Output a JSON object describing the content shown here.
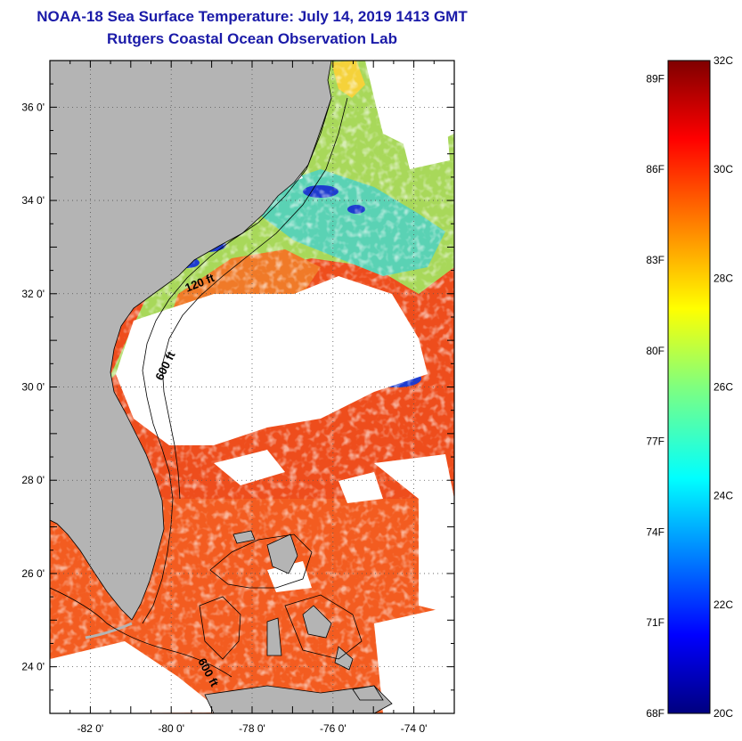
{
  "header": {
    "title": "NOAA-18 Sea Surface Temperature:  July 14, 2019 1413 GMT",
    "subtitle": "Rutgers Coastal Ocean Observation Lab"
  },
  "map": {
    "lon_range": [
      -83,
      -73
    ],
    "lat_range": [
      23,
      37
    ],
    "lon_ticks": [
      {
        "value": -82,
        "label": "-82 0'"
      },
      {
        "value": -80,
        "label": "-80 0'"
      },
      {
        "value": -78,
        "label": "-78 0'"
      },
      {
        "value": -76,
        "label": "-76 0'"
      },
      {
        "value": -74,
        "label": "-74 0'"
      }
    ],
    "lat_ticks": [
      {
        "value": 36,
        "label": "36 0'"
      },
      {
        "value": 34,
        "label": "34 0'"
      },
      {
        "value": 32,
        "label": "32 0'"
      },
      {
        "value": 30,
        "label": "30 0'"
      },
      {
        "value": 28,
        "label": "28 0'"
      },
      {
        "value": 26,
        "label": "26 0'"
      },
      {
        "value": 24,
        "label": "24 0'"
      }
    ],
    "contour_labels": [
      "120 ft",
      "600 ft",
      "600 ft"
    ],
    "colors": {
      "land": "#b4b4b4",
      "cloud": "#ffffff",
      "warm_water": "#f0521e",
      "cool_water": "#1e3cd2"
    }
  },
  "colorbar": {
    "range_c": [
      20,
      32
    ],
    "celsius_labels": [
      {
        "value": 32,
        "label": "32C"
      },
      {
        "value": 30,
        "label": "30C"
      },
      {
        "value": 28,
        "label": "28C"
      },
      {
        "value": 26,
        "label": "26C"
      },
      {
        "value": 24,
        "label": "24C"
      },
      {
        "value": 22,
        "label": "22C"
      },
      {
        "value": 20,
        "label": "20C"
      }
    ],
    "fahrenheit_labels": [
      {
        "value": 89,
        "label": "89F"
      },
      {
        "value": 86,
        "label": "86F"
      },
      {
        "value": 83,
        "label": "83F"
      },
      {
        "value": 80,
        "label": "80F"
      },
      {
        "value": 77,
        "label": "77F"
      },
      {
        "value": 74,
        "label": "74F"
      },
      {
        "value": 71,
        "label": "71F"
      },
      {
        "value": 68,
        "label": "68F"
      }
    ]
  }
}
